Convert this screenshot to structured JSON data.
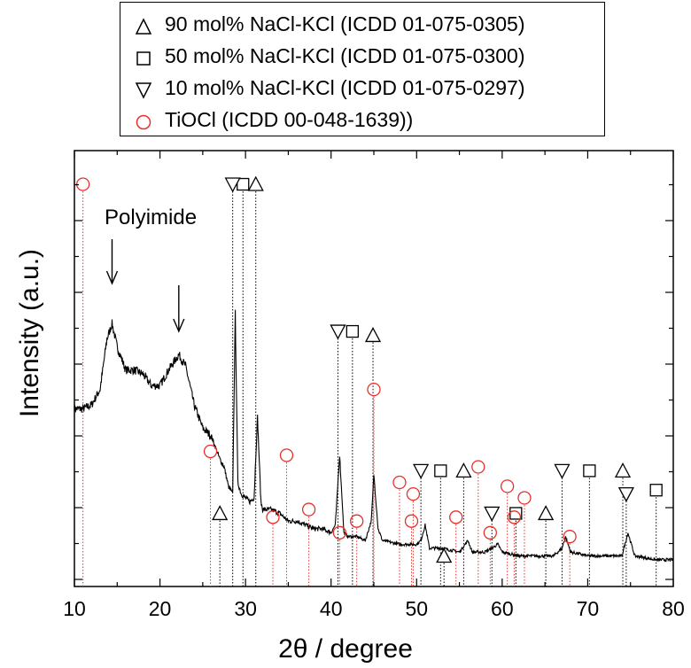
{
  "chart_data": {
    "type": "line",
    "xlabel": "2θ / degree",
    "ylabel": "Intensity (a.u.)",
    "xlim": [
      10,
      80
    ],
    "ylim": [
      0,
      100
    ],
    "xticks": [
      "10",
      "20",
      "30",
      "40",
      "50",
      "60",
      "70",
      "80"
    ],
    "annotation": "Polyimide",
    "polyimide_peaks": [
      14.4,
      22.2
    ],
    "legend": [
      {
        "marker": "triangle-up",
        "label": "90 mol% NaCl-KCl (ICDD 01-075-0305)",
        "color": "#000000"
      },
      {
        "marker": "square",
        "label": "50 mol% NaCl-KCl (ICDD 01-075-0300)",
        "color": "#000000"
      },
      {
        "marker": "triangle-down",
        "label": "10 mol% NaCl-KCl (ICDD 01-075-0297)",
        "color": "#000000"
      },
      {
        "marker": "circle",
        "label": "TiOCl (ICDD 00-048-1639))",
        "color": "#e8302a"
      }
    ],
    "series": [
      {
        "points": [
          [
            10,
            42
          ],
          [
            10.8,
            42
          ],
          [
            11,
            42
          ],
          [
            12,
            43
          ],
          [
            13,
            47
          ],
          [
            13.8,
            60
          ],
          [
            14.4,
            64
          ],
          [
            15,
            58
          ],
          [
            16,
            52
          ],
          [
            17,
            52
          ],
          [
            18,
            51
          ],
          [
            19,
            48
          ],
          [
            20,
            48
          ],
          [
            20.5,
            50
          ],
          [
            21,
            52
          ],
          [
            22.2,
            56
          ],
          [
            23,
            53
          ],
          [
            24,
            43
          ],
          [
            25,
            37
          ],
          [
            26,
            35
          ],
          [
            27,
            29
          ],
          [
            27.5,
            27
          ],
          [
            28,
            22
          ],
          [
            28.5,
            20
          ],
          [
            28.8,
            67
          ],
          [
            29.1,
            23
          ],
          [
            29.5,
            20
          ],
          [
            30,
            19
          ],
          [
            30.5,
            18
          ],
          [
            31,
            19
          ],
          [
            31.4,
            40
          ],
          [
            31.8,
            18
          ],
          [
            32,
            16
          ],
          [
            33,
            16
          ],
          [
            34,
            15
          ],
          [
            35,
            13
          ],
          [
            36,
            13
          ],
          [
            37,
            12
          ],
          [
            38,
            11
          ],
          [
            39,
            11
          ],
          [
            40,
            10
          ],
          [
            40.5,
            12
          ],
          [
            41,
            30
          ],
          [
            41.5,
            10
          ],
          [
            42,
            9
          ],
          [
            43,
            9
          ],
          [
            44,
            8
          ],
          [
            44.7,
            13
          ],
          [
            45,
            25
          ],
          [
            45.5,
            11
          ],
          [
            46,
            8
          ],
          [
            48,
            7
          ],
          [
            50,
            7
          ],
          [
            50.5,
            8
          ],
          [
            51,
            12
          ],
          [
            51.5,
            6
          ],
          [
            53,
            6
          ],
          [
            55,
            5
          ],
          [
            56,
            8
          ],
          [
            56.5,
            5
          ],
          [
            58,
            5
          ],
          [
            59.5,
            7
          ],
          [
            60,
            5
          ],
          [
            62,
            4
          ],
          [
            64,
            4
          ],
          [
            66,
            4
          ],
          [
            67,
            6
          ],
          [
            67.4,
            9
          ],
          [
            68,
            5
          ],
          [
            70,
            4
          ],
          [
            72,
            4
          ],
          [
            74,
            4
          ],
          [
            74.7,
            10
          ],
          [
            75.5,
            4
          ],
          [
            78,
            3
          ],
          [
            80,
            3
          ]
        ]
      }
    ],
    "references": [
      {
        "marker": "triangle-up",
        "positions": [
          [
            27.0,
            15
          ],
          [
            31.2,
            100
          ],
          [
            44.9,
            61
          ],
          [
            53.2,
            4
          ],
          [
            55.5,
            26
          ],
          [
            65.1,
            15
          ],
          [
            74.1,
            26
          ]
        ]
      },
      {
        "marker": "square",
        "positions": [
          [
            29.7,
            100
          ],
          [
            42.5,
            62
          ],
          [
            52.8,
            26
          ],
          [
            61.6,
            15
          ],
          [
            70.2,
            26
          ],
          [
            78.0,
            21
          ]
        ]
      },
      {
        "marker": "triangle-down",
        "positions": [
          [
            28.5,
            100
          ],
          [
            40.8,
            62
          ],
          [
            50.5,
            26
          ],
          [
            58.8,
            15
          ],
          [
            67.0,
            26
          ],
          [
            74.5,
            20
          ]
        ]
      },
      {
        "marker": "circle",
        "positions": [
          [
            11.0,
            100
          ],
          [
            25.9,
            31
          ],
          [
            33.2,
            14
          ],
          [
            34.8,
            30
          ],
          [
            37.4,
            16
          ],
          [
            41.0,
            10
          ],
          [
            43.0,
            13
          ],
          [
            45.0,
            47
          ],
          [
            48.0,
            23
          ],
          [
            49.4,
            13
          ],
          [
            49.6,
            20
          ],
          [
            54.6,
            14
          ],
          [
            57.2,
            27
          ],
          [
            58.6,
            10
          ],
          [
            60.6,
            22
          ],
          [
            61.4,
            14
          ],
          [
            62.6,
            19
          ],
          [
            67.9,
            9
          ]
        ]
      }
    ]
  }
}
